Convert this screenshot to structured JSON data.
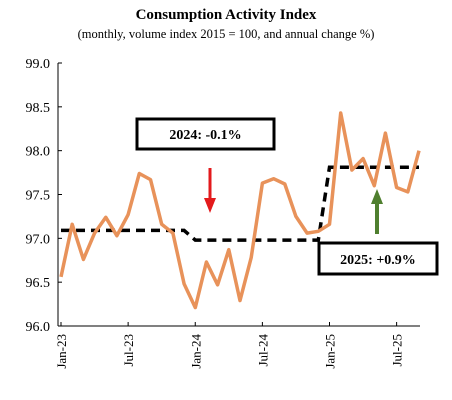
{
  "chart_data": {
    "type": "line",
    "title": "Consumption Activity Index",
    "subtitle": "(monthly, volume index 2015 = 100, and annual change %)",
    "ylim": [
      96.0,
      99.0
    ],
    "yticks": [
      "96.0",
      "96.5",
      "97.0",
      "97.5",
      "98.0",
      "98.5",
      "99.0"
    ],
    "xtick_labels": [
      "Jan-23",
      "Jul-23",
      "Jan-24",
      "Jul-24",
      "Jan-25",
      "Jul-25"
    ],
    "grid": false,
    "colors": {
      "series": "#e8925a",
      "average": "#000000",
      "down_arrow": "#e31a1c",
      "up_arrow": "#4f7f2f"
    },
    "series": [
      {
        "x": [
          "Jan-23",
          "Feb-23",
          "Mar-23",
          "Apr-23",
          "May-23",
          "Jun-23",
          "Jul-23",
          "Aug-23",
          "Sep-23",
          "Oct-23",
          "Nov-23",
          "Dec-23",
          "Jan-24",
          "Feb-24",
          "Mar-24",
          "Apr-24",
          "May-24",
          "Jun-24",
          "Jul-24",
          "Aug-24",
          "Sep-24",
          "Oct-24",
          "Nov-24",
          "Dec-24",
          "Jan-25",
          "Feb-25",
          "Mar-25",
          "Apr-25",
          "May-25",
          "Jun-25",
          "Jul-25",
          "Aug-25",
          "Sep-25"
        ],
        "values": [
          96.56,
          97.16,
          96.76,
          97.06,
          97.24,
          97.03,
          97.27,
          97.74,
          97.67,
          97.16,
          97.06,
          96.48,
          96.21,
          96.73,
          96.47,
          96.87,
          96.29,
          96.78,
          97.63,
          97.68,
          97.62,
          97.25,
          97.06,
          97.08,
          97.16,
          98.43,
          97.78,
          97.91,
          97.6,
          98.2,
          97.58,
          97.53,
          98.0
        ]
      },
      {
        "x": [
          "Jan-23",
          "Dec-23",
          "Jan-24",
          "Dec-24",
          "Jan-25",
          "Sep-25"
        ],
        "values": [
          97.09,
          97.09,
          96.98,
          96.98,
          97.81,
          97.81
        ]
      }
    ],
    "annotations": [
      {
        "text": "2024: -0.1%"
      },
      {
        "text": "2025: +0.9%"
      }
    ]
  }
}
